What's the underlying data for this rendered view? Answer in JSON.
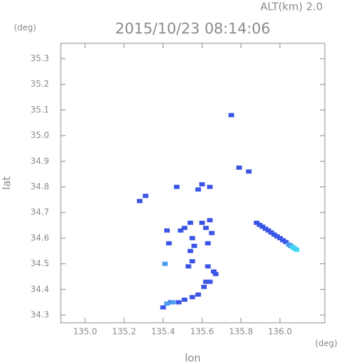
{
  "chart_data": {
    "type": "scatter",
    "title": "2015/10/23 08:14:06",
    "subtitle": "ALT(km) 2.0",
    "x_label": "lon",
    "y_label": "lat",
    "x_unit": "(deg)",
    "y_unit": "(deg)",
    "xlim": [
      134.875,
      136.23
    ],
    "ylim": [
      34.27,
      35.36
    ],
    "xticks": [
      {
        "value": 135,
        "label": "135.0"
      },
      135.2,
      135.4,
      135.6,
      135.8,
      {
        "value": 136,
        "label": "136.0"
      }
    ],
    "yticks": [
      34.3,
      34.4,
      34.5,
      34.6,
      34.7,
      34.8,
      34.9,
      {
        "value": 35,
        "label": "35.0"
      },
      35.1,
      35.2,
      35.3
    ],
    "series": [
      {
        "color": "#3a55e6",
        "x": [
          135.28,
          135.31,
          135.47,
          135.58,
          135.6,
          135.64,
          135.75,
          135.79,
          135.84,
          135.42,
          135.43,
          135.49,
          135.51,
          135.54,
          135.55,
          135.54,
          135.56,
          135.53,
          135.55,
          135.6,
          135.62,
          135.64,
          135.65,
          135.63,
          135.63,
          135.66,
          135.67,
          135.62,
          135.64,
          135.61,
          135.58,
          135.55,
          135.51,
          135.48,
          135.44,
          135.4,
          135.88,
          135.895,
          135.91,
          135.925,
          135.94,
          135.955,
          135.97,
          135.985,
          136.0,
          136.015,
          136.03
        ],
        "values": [
          34.745,
          34.765,
          34.8,
          34.79,
          34.81,
          34.8,
          35.08,
          34.875,
          34.86,
          34.63,
          34.58,
          34.63,
          34.64,
          34.66,
          34.6,
          34.55,
          34.57,
          34.49,
          34.51,
          34.66,
          34.64,
          34.67,
          34.62,
          34.58,
          34.49,
          34.47,
          34.46,
          34.43,
          34.43,
          34.41,
          34.38,
          34.37,
          34.36,
          34.35,
          34.35,
          34.33,
          34.66,
          34.652,
          34.645,
          34.637,
          34.63,
          34.622,
          34.614,
          34.607,
          34.6,
          34.592,
          34.585
        ]
      },
      {
        "color": "#4a9cf0",
        "x": [
          135.41,
          135.42,
          135.45,
          136.045,
          136.055
        ],
        "values": [
          34.5,
          34.345,
          34.35,
          34.575,
          34.57
        ]
      },
      {
        "color": "#40d4f2",
        "x": [
          136.065,
          136.075,
          136.085
        ],
        "values": [
          34.565,
          34.56,
          34.555
        ]
      }
    ]
  }
}
